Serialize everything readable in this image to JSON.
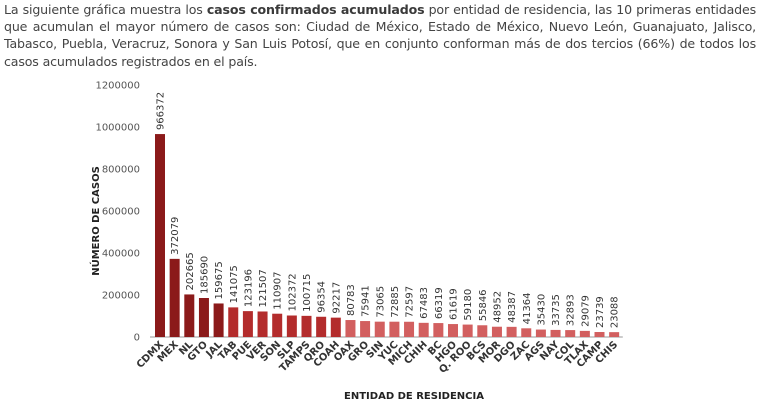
{
  "intro": {
    "before": "La siguiente gráfica muestra los ",
    "bold": "casos confirmados acumulados",
    "after": " por entidad de residencia, las 10 primeras entidades que acumulan el mayor número de casos son: Ciudad de México, Estado de México, Nuevo León, Guanajuato, Jalisco, Tabasco, Puebla, Veracruz, Sonora y San Luis Potosí, que en conjunto conforman más de dos tercios (66%) de todos los casos acumulados registrados en el país."
  },
  "colors": {
    "dark": "#8b1a1a",
    "mid": "#b32c2c",
    "light": "#d25f5f",
    "axis": "#999999"
  },
  "chart_data": {
    "type": "bar",
    "xlabel": "ENTIDAD DE RESIDENCIA",
    "ylabel": "NÚMERO DE CASOS",
    "ylim": [
      0,
      1200000
    ],
    "yticks": [
      0,
      200000,
      400000,
      600000,
      800000,
      1000000,
      1200000
    ],
    "categories": [
      "CDMX",
      "MEX",
      "NL",
      "GTO",
      "JAL",
      "TAB",
      "PUE",
      "VER",
      "SON",
      "SLP",
      "TAMPS",
      "QRO",
      "COAH",
      "OAX",
      "GRO",
      "SIN",
      "YUC",
      "MICH",
      "CHIH",
      "BC",
      "HGO",
      "Q. ROO",
      "BCS",
      "MOR",
      "DGO",
      "ZAC",
      "AGS",
      "NAY",
      "COL",
      "TLAX",
      "CAMP",
      "CHIS"
    ],
    "values": [
      966372,
      372079,
      202665,
      185690,
      159675,
      141075,
      123196,
      121507,
      110907,
      102372,
      100715,
      96354,
      92217,
      80783,
      75941,
      73065,
      72885,
      72597,
      67483,
      66319,
      61619,
      59180,
      55846,
      48952,
      48387,
      41364,
      35430,
      33735,
      32893,
      29079,
      23739,
      23088
    ],
    "data_labels": [
      "966372",
      "372079",
      "202665",
      "185690",
      "159675",
      "141075",
      "123196",
      "121507",
      "110907",
      "102372",
      "100715",
      "96354",
      "92217",
      "80783",
      "75941",
      "73065",
      "72885",
      "72597",
      "67483",
      "66319",
      "61619",
      "59180",
      "55846",
      "48952",
      "48387",
      "41364",
      "35430",
      "33735",
      "32893",
      "29079",
      "23739",
      "23088"
    ],
    "grid": false,
    "legend": "none"
  }
}
